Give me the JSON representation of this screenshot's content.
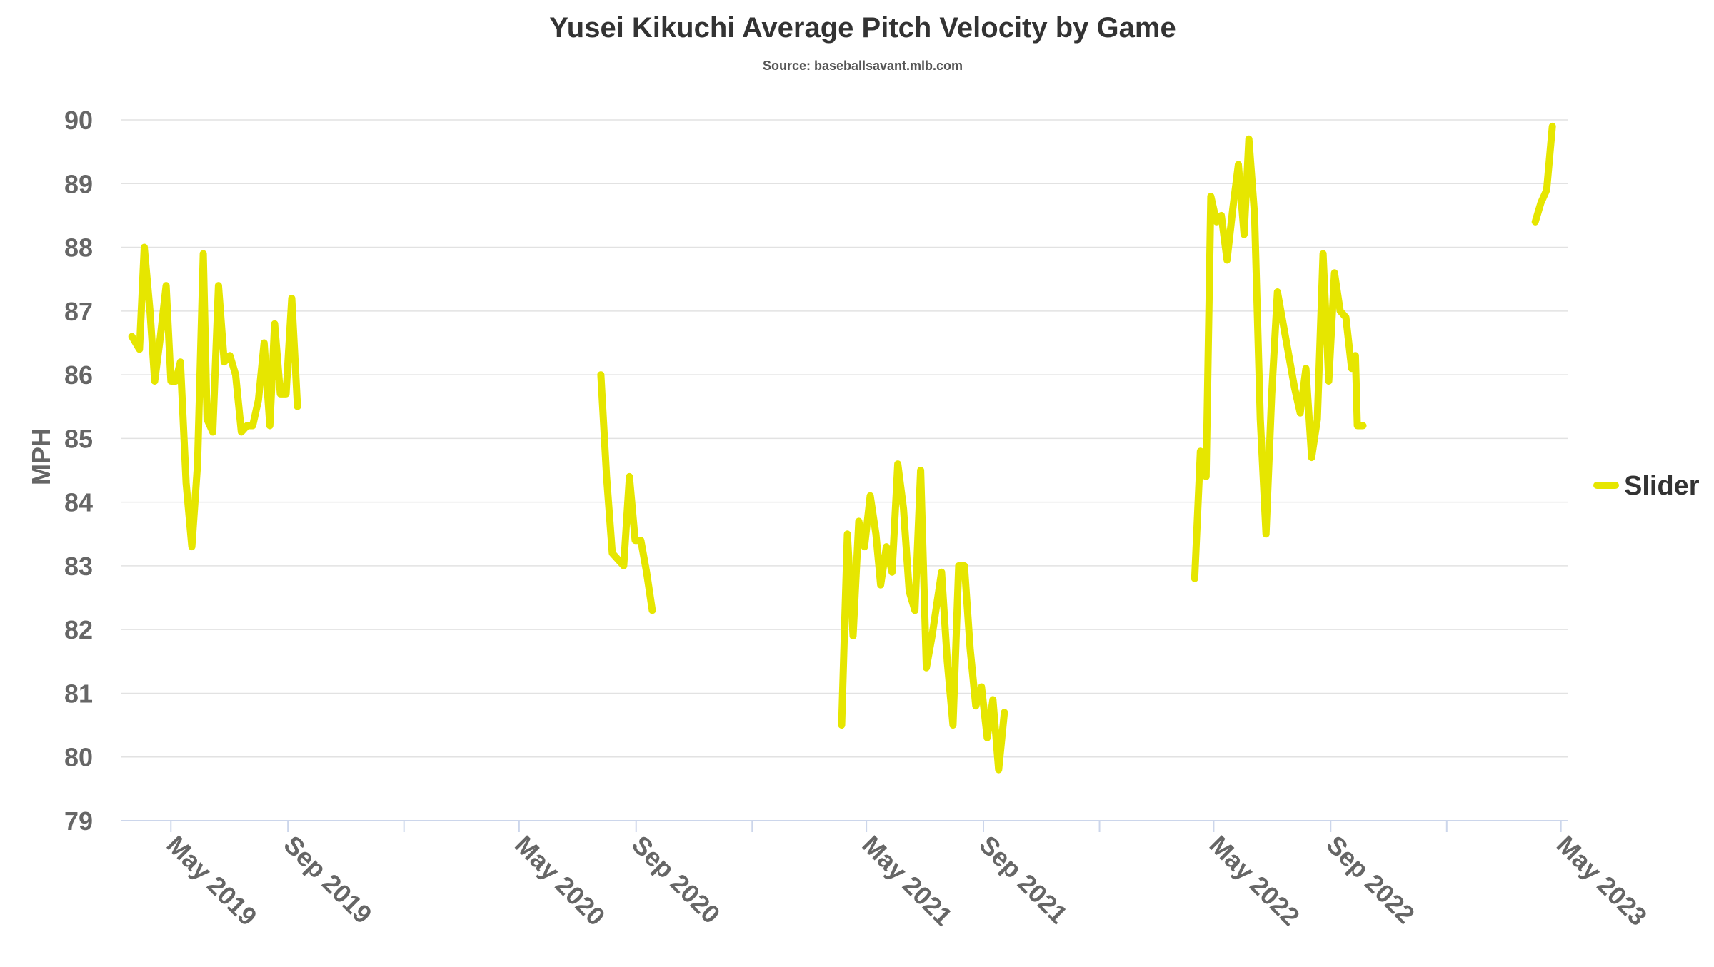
{
  "chart_data": {
    "type": "line",
    "title": "Yusei Kikuchi Average Pitch Velocity by Game",
    "subtitle": "Source: baseballsavant.mlb.com",
    "ylabel": "MPH",
    "xlabel": "",
    "ylim": [
      79,
      90
    ],
    "yticks": [
      79,
      80,
      81,
      82,
      83,
      84,
      85,
      86,
      87,
      88,
      89,
      90
    ],
    "xlim": [
      "2019-03-10",
      "2023-05-08"
    ],
    "xticks": [
      {
        "label": "May 2019",
        "date": "2019-05-01"
      },
      {
        "label": "Sep 2019",
        "date": "2019-09-01"
      },
      {
        "label": "",
        "date": "2020-01-01"
      },
      {
        "label": "May 2020",
        "date": "2020-05-01"
      },
      {
        "label": "Sep 2020",
        "date": "2020-09-01"
      },
      {
        "label": "",
        "date": "2021-01-01"
      },
      {
        "label": "May 2021",
        "date": "2021-05-01"
      },
      {
        "label": "Sep 2021",
        "date": "2021-09-01"
      },
      {
        "label": "",
        "date": "2022-01-01"
      },
      {
        "label": "May 2022",
        "date": "2022-05-01"
      },
      {
        "label": "Sep 2022",
        "date": "2022-09-01"
      },
      {
        "label": "",
        "date": "2023-01-01"
      },
      {
        "label": "May 2023",
        "date": "2023-05-01"
      }
    ],
    "grid": true,
    "legend_position": "right",
    "series": [
      {
        "name": "Slider",
        "color": "#e6e600",
        "segments": [
          [
            {
              "x": "2019-03-21",
              "y": 86.6
            },
            {
              "x": "2019-03-29",
              "y": 86.4
            },
            {
              "x": "2019-04-03",
              "y": 88.0
            },
            {
              "x": "2019-04-09",
              "y": 87.0
            },
            {
              "x": "2019-04-14",
              "y": 85.9
            },
            {
              "x": "2019-04-20",
              "y": 86.6
            },
            {
              "x": "2019-04-26",
              "y": 87.4
            },
            {
              "x": "2019-05-01",
              "y": 85.9
            },
            {
              "x": "2019-05-06",
              "y": 85.9
            },
            {
              "x": "2019-05-11",
              "y": 86.2
            },
            {
              "x": "2019-05-17",
              "y": 84.3
            },
            {
              "x": "2019-05-23",
              "y": 83.3
            },
            {
              "x": "2019-05-29",
              "y": 84.6
            },
            {
              "x": "2019-06-04",
              "y": 87.9
            },
            {
              "x": "2019-06-08",
              "y": 85.3
            },
            {
              "x": "2019-06-14",
              "y": 85.1
            },
            {
              "x": "2019-06-20",
              "y": 87.4
            },
            {
              "x": "2019-06-26",
              "y": 86.2
            },
            {
              "x": "2019-07-02",
              "y": 86.3
            },
            {
              "x": "2019-07-08",
              "y": 86.0
            },
            {
              "x": "2019-07-14",
              "y": 85.1
            },
            {
              "x": "2019-07-20",
              "y": 85.2
            },
            {
              "x": "2019-07-26",
              "y": 85.2
            },
            {
              "x": "2019-08-01",
              "y": 85.6
            },
            {
              "x": "2019-08-07",
              "y": 86.5
            },
            {
              "x": "2019-08-13",
              "y": 85.2
            },
            {
              "x": "2019-08-18",
              "y": 86.8
            },
            {
              "x": "2019-08-24",
              "y": 85.7
            },
            {
              "x": "2019-08-30",
              "y": 85.7
            },
            {
              "x": "2019-09-05",
              "y": 87.2
            },
            {
              "x": "2019-09-11",
              "y": 85.5
            }
          ],
          [
            {
              "x": "2020-07-26",
              "y": 86.0
            },
            {
              "x": "2020-08-01",
              "y": 84.4
            },
            {
              "x": "2020-08-07",
              "y": 83.2
            },
            {
              "x": "2020-08-13",
              "y": 83.1
            },
            {
              "x": "2020-08-19",
              "y": 83.0
            },
            {
              "x": "2020-08-25",
              "y": 84.4
            },
            {
              "x": "2020-08-31",
              "y": 83.4
            },
            {
              "x": "2020-09-06",
              "y": 83.4
            },
            {
              "x": "2020-09-12",
              "y": 82.9
            },
            {
              "x": "2020-09-18",
              "y": 82.3
            }
          ],
          [
            {
              "x": "2021-04-05",
              "y": 80.5
            },
            {
              "x": "2021-04-11",
              "y": 83.5
            },
            {
              "x": "2021-04-17",
              "y": 81.9
            },
            {
              "x": "2021-04-23",
              "y": 83.7
            },
            {
              "x": "2021-04-29",
              "y": 83.3
            },
            {
              "x": "2021-05-05",
              "y": 84.1
            },
            {
              "x": "2021-05-11",
              "y": 83.5
            },
            {
              "x": "2021-05-16",
              "y": 82.7
            },
            {
              "x": "2021-05-22",
              "y": 83.3
            },
            {
              "x": "2021-05-28",
              "y": 82.9
            },
            {
              "x": "2021-06-03",
              "y": 84.6
            },
            {
              "x": "2021-06-09",
              "y": 83.9
            },
            {
              "x": "2021-06-15",
              "y": 82.6
            },
            {
              "x": "2021-06-21",
              "y": 82.3
            },
            {
              "x": "2021-06-27",
              "y": 84.5
            },
            {
              "x": "2021-07-03",
              "y": 81.4
            },
            {
              "x": "2021-07-09",
              "y": 81.9
            },
            {
              "x": "2021-07-19",
              "y": 82.9
            },
            {
              "x": "2021-07-25",
              "y": 81.5
            },
            {
              "x": "2021-07-31",
              "y": 80.5
            },
            {
              "x": "2021-08-06",
              "y": 83.0
            },
            {
              "x": "2021-08-12",
              "y": 83.0
            },
            {
              "x": "2021-08-18",
              "y": 81.7
            },
            {
              "x": "2021-08-24",
              "y": 80.8
            },
            {
              "x": "2021-08-30",
              "y": 81.1
            },
            {
              "x": "2021-09-05",
              "y": 80.3
            },
            {
              "x": "2021-09-11",
              "y": 80.9
            },
            {
              "x": "2021-09-17",
              "y": 79.8
            },
            {
              "x": "2021-09-23",
              "y": 80.7
            }
          ],
          [
            {
              "x": "2022-04-11",
              "y": 82.8
            },
            {
              "x": "2022-04-17",
              "y": 84.8
            },
            {
              "x": "2022-04-23",
              "y": 84.4
            },
            {
              "x": "2022-04-28",
              "y": 88.8
            },
            {
              "x": "2022-05-04",
              "y": 88.4
            },
            {
              "x": "2022-05-09",
              "y": 88.5
            },
            {
              "x": "2022-05-15",
              "y": 87.8
            },
            {
              "x": "2022-05-21",
              "y": 88.6
            },
            {
              "x": "2022-05-27",
              "y": 89.3
            },
            {
              "x": "2022-06-02",
              "y": 88.2
            },
            {
              "x": "2022-06-07",
              "y": 89.7
            },
            {
              "x": "2022-06-13",
              "y": 88.5
            },
            {
              "x": "2022-06-19",
              "y": 85.3
            },
            {
              "x": "2022-06-25",
              "y": 83.5
            },
            {
              "x": "2022-07-01",
              "y": 85.7
            },
            {
              "x": "2022-07-07",
              "y": 87.3
            },
            {
              "x": "2022-07-13",
              "y": 86.8
            },
            {
              "x": "2022-07-19",
              "y": 86.3
            },
            {
              "x": "2022-07-25",
              "y": 85.8
            },
            {
              "x": "2022-07-31",
              "y": 85.4
            },
            {
              "x": "2022-08-06",
              "y": 86.1
            },
            {
              "x": "2022-08-12",
              "y": 84.7
            },
            {
              "x": "2022-08-18",
              "y": 85.3
            },
            {
              "x": "2022-08-24",
              "y": 87.9
            },
            {
              "x": "2022-08-30",
              "y": 85.9
            },
            {
              "x": "2022-09-05",
              "y": 87.6
            },
            {
              "x": "2022-09-11",
              "y": 87.0
            },
            {
              "x": "2022-09-17",
              "y": 86.9
            },
            {
              "x": "2022-09-23",
              "y": 86.1
            },
            {
              "x": "2022-09-27",
              "y": 86.3
            },
            {
              "x": "2022-09-29",
              "y": 85.2
            },
            {
              "x": "2022-10-05",
              "y": 85.2
            }
          ],
          [
            {
              "x": "2023-04-04",
              "y": 88.4
            },
            {
              "x": "2023-04-10",
              "y": 88.7
            },
            {
              "x": "2023-04-16",
              "y": 88.9
            },
            {
              "x": "2023-04-22",
              "y": 89.9
            }
          ]
        ]
      }
    ]
  }
}
